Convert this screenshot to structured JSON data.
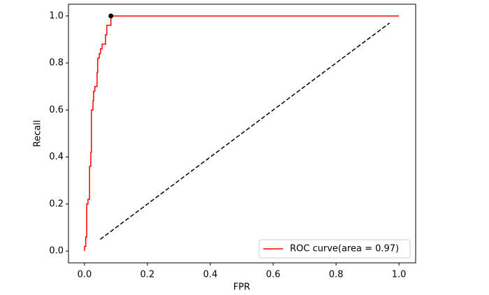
{
  "chart_data": {
    "type": "line",
    "x_label": "FPR",
    "y_label": "Recall",
    "xlim": [
      -0.051,
      1.053
    ],
    "ylim": [
      -0.05,
      1.05
    ],
    "xticks": [
      {
        "value": 0,
        "label": "0.0"
      },
      0.2,
      0.4,
      0.6,
      0.8,
      {
        "value": 1,
        "label": "1.0"
      }
    ],
    "yticks": [
      {
        "value": 0,
        "label": "0.0"
      },
      0.2,
      0.4,
      0.6,
      0.8,
      {
        "value": 1,
        "label": "1.0"
      }
    ],
    "grid": false,
    "legend": "lower right",
    "series": [
      {
        "name": "ROC curve(area = 0.97)",
        "color": "#ff0000",
        "x": [
          0,
          0,
          0.004,
          0.004,
          0.007,
          0.007,
          0.011,
          0.011,
          0.016,
          0.016,
          0.02,
          0.02,
          0.022,
          0.022,
          0.027,
          0.027,
          0.029,
          0.029,
          0.033,
          0.033,
          0.04,
          0.04,
          0.042,
          0.042,
          0.047,
          0.047,
          0.051,
          0.051,
          0.056,
          0.056,
          0.067,
          0.067,
          0.071,
          0.071,
          0.084,
          0.084,
          1.0
        ],
        "y": [
          0,
          0.02,
          0.02,
          0.06,
          0.06,
          0.2,
          0.2,
          0.22,
          0.22,
          0.36,
          0.36,
          0.42,
          0.42,
          0.6,
          0.6,
          0.64,
          0.64,
          0.68,
          0.68,
          0.7,
          0.7,
          0.76,
          0.76,
          0.82,
          0.82,
          0.84,
          0.84,
          0.86,
          0.86,
          0.88,
          0.88,
          0.92,
          0.92,
          0.96,
          0.96,
          1.0,
          1.0
        ]
      }
    ],
    "reference_line": {
      "x": [
        0.05,
        0.97
      ],
      "y": [
        0.05,
        0.97
      ],
      "color": "#000000",
      "style": "dashed"
    },
    "marker": {
      "x": 0.084,
      "y": 1.0,
      "color": "#000000"
    }
  }
}
